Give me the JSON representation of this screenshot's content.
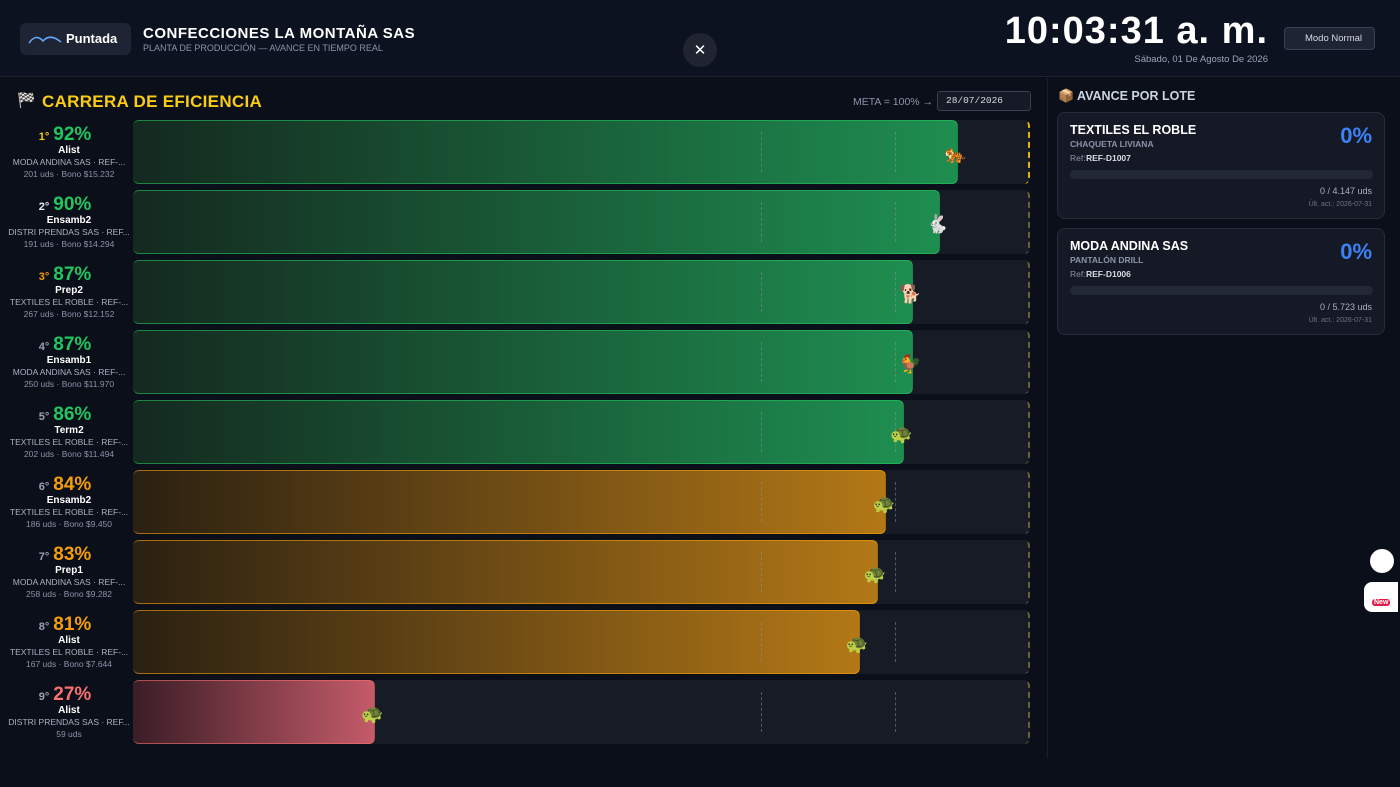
{
  "header": {
    "logo": "Puntada",
    "company": "CONFECCIONES LA MONTAÑA SAS",
    "subtitle": "PLANTA DE PRODUCCIÓN — AVANCE EN TIEMPO REAL",
    "time": "10:03:31 a. m.",
    "date": "Sábado, 01 De Agosto De 2026",
    "mode_button": "Modo Normal",
    "close": "✕"
  },
  "race": {
    "icon": "🏁",
    "title": "CARRERA DE EFICIENCIA",
    "goal": "META = 100% →",
    "date_input": "28/07/2026",
    "xlim": [
      0,
      100
    ],
    "markers": [
      70,
      85
    ],
    "rows": [
      {
        "rank": "1°",
        "efficiency": 92,
        "efficiency_label": "92%",
        "worker": "Alist",
        "detail": "MODA ANDINA SAS · REF-...",
        "summary": "201 uds · Bono $15.232",
        "icon": "🐅",
        "color": "#22c55e"
      },
      {
        "rank": "2°",
        "efficiency": 90,
        "efficiency_label": "90%",
        "worker": "Ensamb2",
        "detail": "DISTRI PRENDAS SAS · REF...",
        "summary": "191 uds · Bono $14.294",
        "icon": "🐇",
        "color": "#22c55e"
      },
      {
        "rank": "3°",
        "efficiency": 87,
        "efficiency_label": "87%",
        "worker": "Prep2",
        "detail": "TEXTILES EL ROBLE · REF-...",
        "summary": "267 uds · Bono $12.152",
        "icon": "🐕",
        "color": "#22c55e"
      },
      {
        "rank": "4°",
        "efficiency": 87,
        "efficiency_label": "87%",
        "worker": "Ensamb1",
        "detail": "MODA ANDINA SAS · REF-...",
        "summary": "250 uds · Bono $11.970",
        "icon": "🐓",
        "color": "#22c55e"
      },
      {
        "rank": "5°",
        "efficiency": 86,
        "efficiency_label": "86%",
        "worker": "Term2",
        "detail": "TEXTILES EL ROBLE · REF-...",
        "summary": "202 uds · Bono $11.494",
        "icon": "🐢",
        "color": "#22c55e"
      },
      {
        "rank": "6°",
        "efficiency": 84,
        "efficiency_label": "84%",
        "worker": "Ensamb2",
        "detail": "TEXTILES EL ROBLE · REF-...",
        "summary": "186 uds · Bono $9.450",
        "icon": "🐢",
        "color": "#f59e0b"
      },
      {
        "rank": "7°",
        "efficiency": 83,
        "efficiency_label": "83%",
        "worker": "Prep1",
        "detail": "MODA ANDINA SAS · REF-...",
        "summary": "258 uds · Bono $9.282",
        "icon": "🐢",
        "color": "#f59e0b"
      },
      {
        "rank": "8°",
        "efficiency": 81,
        "efficiency_label": "81%",
        "worker": "Alist",
        "detail": "TEXTILES EL ROBLE · REF-...",
        "summary": "167 uds · Bono $7.644",
        "icon": "🐢",
        "color": "#f59e0b"
      },
      {
        "rank": "9°",
        "efficiency": 27,
        "efficiency_label": "27%",
        "worker": "Alist",
        "detail": "DISTRI PRENDAS SAS · REF...",
        "summary": "59 uds",
        "icon": "🐢",
        "color": "#f87171"
      }
    ]
  },
  "batches": {
    "icon": "📦",
    "title": "AVANCE POR LOTE",
    "items": [
      {
        "client": "TEXTILES EL ROBLE",
        "product": "CHAQUETA LIVIANA",
        "ref_label": "Ref:",
        "ref": "REF-D1007",
        "progress": 0,
        "progress_label": "0%",
        "units": "0 / 4.147 uds",
        "updated": "Últ. act.: 2026-07-31"
      },
      {
        "client": "MODA ANDINA SAS",
        "product": "PANTALÓN DRILL",
        "ref_label": "Ref:",
        "ref": "REF-D1006",
        "progress": 0,
        "progress_label": "0%",
        "units": "0 / 5.723 uds",
        "updated": "Últ. act.: 2026-07-31"
      }
    ]
  },
  "widgets": {
    "badge": "New"
  }
}
